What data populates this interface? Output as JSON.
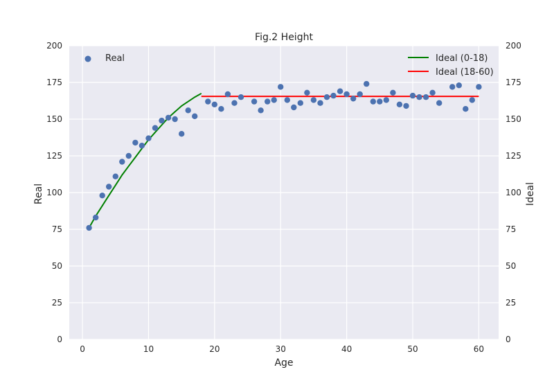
{
  "chart_data": {
    "type": "scatter",
    "title": "Fig.2 Height",
    "xlabel": "Age",
    "ylabel": "Real",
    "ylabel_right": "Ideal",
    "xlim": [
      -2,
      63
    ],
    "ylim": [
      0,
      200
    ],
    "x_ticks": [
      0,
      10,
      20,
      30,
      40,
      50,
      60
    ],
    "y_ticks": [
      0,
      25,
      50,
      75,
      100,
      125,
      150,
      175,
      200
    ],
    "grid": true,
    "legend_left": {
      "placement": "top-left",
      "entries": [
        "Real"
      ]
    },
    "legend_right": {
      "placement": "top-right",
      "entries": [
        "Ideal (0-18)",
        "Ideal (18-60)"
      ]
    },
    "series": [
      {
        "name": "Real",
        "kind": "scatter",
        "color": "#4c72b0",
        "points": [
          [
            1,
            76
          ],
          [
            2,
            83
          ],
          [
            3,
            98
          ],
          [
            4,
            104
          ],
          [
            5,
            111
          ],
          [
            6,
            121
          ],
          [
            7,
            125
          ],
          [
            8,
            134
          ],
          [
            9,
            132
          ],
          [
            10,
            137
          ],
          [
            11,
            144
          ],
          [
            12,
            149
          ],
          [
            13,
            151
          ],
          [
            14,
            150
          ],
          [
            15,
            140
          ],
          [
            16,
            156
          ],
          [
            17,
            152
          ],
          [
            19,
            162
          ],
          [
            20,
            160
          ],
          [
            21,
            157
          ],
          [
            22,
            167
          ],
          [
            23,
            161
          ],
          [
            24,
            165
          ],
          [
            26,
            162
          ],
          [
            27,
            156
          ],
          [
            28,
            162
          ],
          [
            29,
            163
          ],
          [
            30,
            172
          ],
          [
            31,
            163
          ],
          [
            32,
            158
          ],
          [
            33,
            161
          ],
          [
            34,
            168
          ],
          [
            35,
            163
          ],
          [
            36,
            161
          ],
          [
            37,
            165
          ],
          [
            38,
            166
          ],
          [
            39,
            169
          ],
          [
            40,
            167
          ],
          [
            41,
            164
          ],
          [
            42,
            167
          ],
          [
            43,
            174
          ],
          [
            44,
            162
          ],
          [
            45,
            162
          ],
          [
            46,
            163
          ],
          [
            47,
            168
          ],
          [
            48,
            160
          ],
          [
            49,
            159
          ],
          [
            50,
            166
          ],
          [
            51,
            165
          ],
          [
            52,
            165
          ],
          [
            53,
            168
          ],
          [
            54,
            161
          ],
          [
            56,
            172
          ],
          [
            57,
            173
          ],
          [
            58,
            157
          ],
          [
            59,
            163
          ],
          [
            60,
            172
          ]
        ]
      },
      {
        "name": "Ideal (0-18)",
        "kind": "line",
        "color": "#008000",
        "points": [
          [
            1,
            76
          ],
          [
            2,
            84
          ],
          [
            3,
            91
          ],
          [
            4,
            98
          ],
          [
            5,
            105
          ],
          [
            6,
            112
          ],
          [
            7,
            118
          ],
          [
            8,
            124
          ],
          [
            9,
            130
          ],
          [
            10,
            136
          ],
          [
            11,
            141
          ],
          [
            12,
            146
          ],
          [
            13,
            151
          ],
          [
            14,
            155
          ],
          [
            15,
            159
          ],
          [
            16,
            162
          ],
          [
            17,
            165
          ],
          [
            18,
            167.5
          ]
        ]
      },
      {
        "name": "Ideal (18-60)",
        "kind": "line",
        "color": "#ff0000",
        "points": [
          [
            18,
            165.5
          ],
          [
            60,
            165.5
          ]
        ]
      }
    ]
  }
}
